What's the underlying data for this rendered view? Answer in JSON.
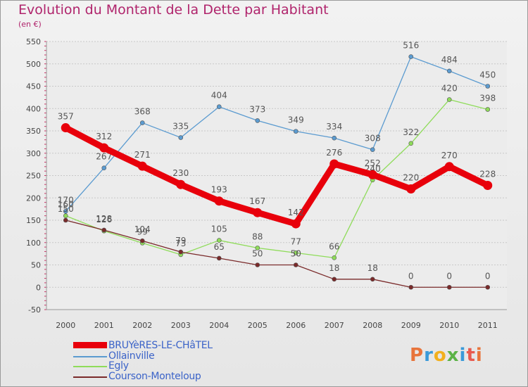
{
  "chart_data": {
    "type": "line",
    "title": "Evolution du Montant de la Dette par Habitant",
    "subtitle": "(en €)",
    "xlabel": "",
    "ylabel": "",
    "categories": [
      "2000",
      "2001",
      "2002",
      "2003",
      "2004",
      "2005",
      "2006",
      "2007",
      "2008",
      "2009",
      "2010",
      "2011"
    ],
    "ylim": [
      -50,
      550
    ],
    "yticks": [
      -50,
      0,
      50,
      100,
      150,
      200,
      250,
      300,
      350,
      400,
      450,
      500,
      550
    ],
    "grid": "horizontal",
    "legend_position": "bottom-left",
    "series": [
      {
        "name": "BRUYèRES-LE-CHâTEL",
        "color": "#e8000b",
        "values": [
          357,
          312,
          271,
          230,
          193,
          167,
          142,
          276,
          252,
          220,
          270,
          228
        ]
      },
      {
        "name": "Ollainville",
        "color": "#5b9bd0",
        "values": [
          170,
          267,
          368,
          335,
          404,
          373,
          349,
          334,
          308,
          516,
          484,
          450
        ]
      },
      {
        "name": "Egly",
        "color": "#8fdc5a",
        "values": [
          160,
          126,
          99,
          73,
          105,
          88,
          77,
          66,
          240,
          322,
          420,
          398
        ]
      },
      {
        "name": "Courson-Monteloup",
        "color": "#7a2a2a",
        "values": [
          150,
          128,
          104,
          79,
          65,
          50,
          50,
          18,
          18,
          0,
          0,
          0
        ]
      }
    ]
  },
  "logo": {
    "text": "Proxiti",
    "letters": [
      "P",
      "r",
      "o",
      "x",
      "i",
      "t",
      "i"
    ]
  }
}
